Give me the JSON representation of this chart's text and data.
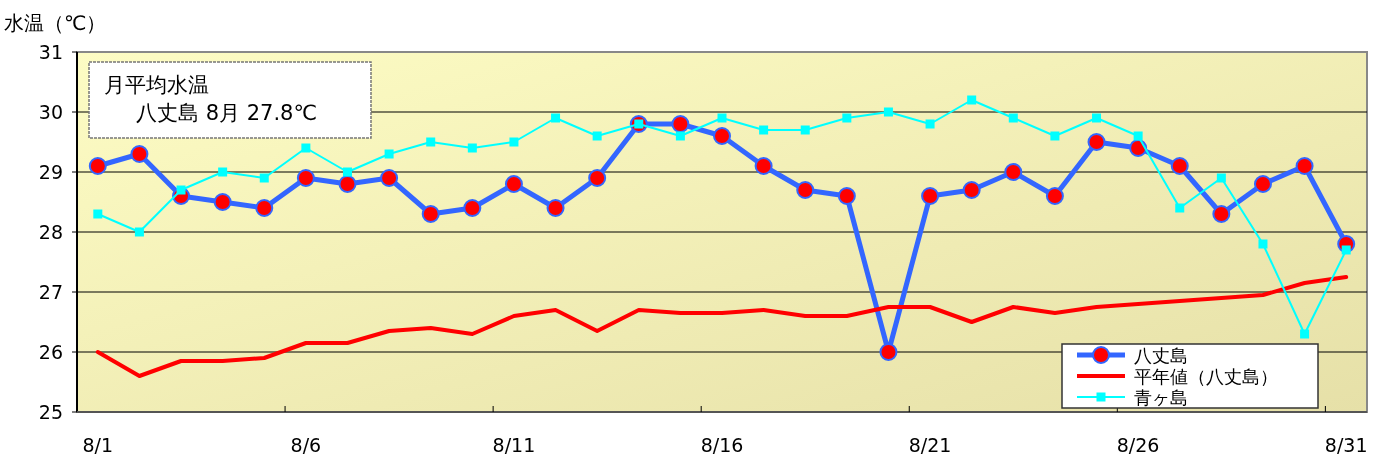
{
  "chart_data": {
    "type": "line",
    "ylabel": "水温（℃）",
    "annotations": [
      "月平均水温",
      "八丈島  8月 27.8℃"
    ],
    "categories": [
      "8/1",
      null,
      null,
      null,
      null,
      "8/6",
      null,
      null,
      null,
      null,
      "8/11",
      null,
      null,
      null,
      null,
      "8/16",
      null,
      null,
      null,
      null,
      "8/21",
      null,
      null,
      null,
      null,
      "8/26",
      null,
      null,
      null,
      null,
      "8/31"
    ],
    "series": [
      {
        "name": "八丈島",
        "color": "#3366ff",
        "marker": "circle",
        "values": [
          29.1,
          29.3,
          28.6,
          28.5,
          28.4,
          28.9,
          28.8,
          28.9,
          28.3,
          28.4,
          28.8,
          28.4,
          28.9,
          29.8,
          29.8,
          29.6,
          29.1,
          28.7,
          28.6,
          26.0,
          28.6,
          28.7,
          29.0,
          28.6,
          29.5,
          29.4,
          29.1,
          28.3,
          28.8,
          29.1,
          27.8
        ]
      },
      {
        "name": "平年値（八丈島）",
        "color": "#ff0000",
        "marker": "none",
        "values": [
          26.0,
          25.6,
          25.85,
          25.85,
          25.9,
          26.15,
          26.15,
          26.35,
          26.4,
          26.3,
          26.6,
          26.7,
          26.35,
          26.7,
          26.65,
          26.65,
          26.7,
          26.6,
          26.6,
          26.75,
          26.75,
          26.5,
          26.75,
          26.65,
          26.75,
          26.8,
          26.85,
          26.9,
          26.95,
          27.15,
          27.25
        ]
      },
      {
        "name": "青ヶ島",
        "color": "#00ffff",
        "marker": "square",
        "values": [
          28.3,
          28.0,
          28.7,
          29.0,
          28.9,
          29.4,
          29.0,
          29.3,
          29.5,
          29.4,
          29.5,
          29.9,
          29.6,
          29.8,
          29.6,
          29.9,
          29.7,
          29.7,
          29.9,
          30.0,
          29.8,
          30.2,
          29.9,
          29.6,
          29.9,
          29.6,
          28.4,
          28.9,
          27.8,
          26.3,
          27.7
        ]
      }
    ],
    "ylim": [
      25,
      31
    ],
    "yticks": [
      25,
      26,
      27,
      28,
      29,
      30,
      31
    ],
    "grid": "y",
    "legend": "bottom right"
  }
}
